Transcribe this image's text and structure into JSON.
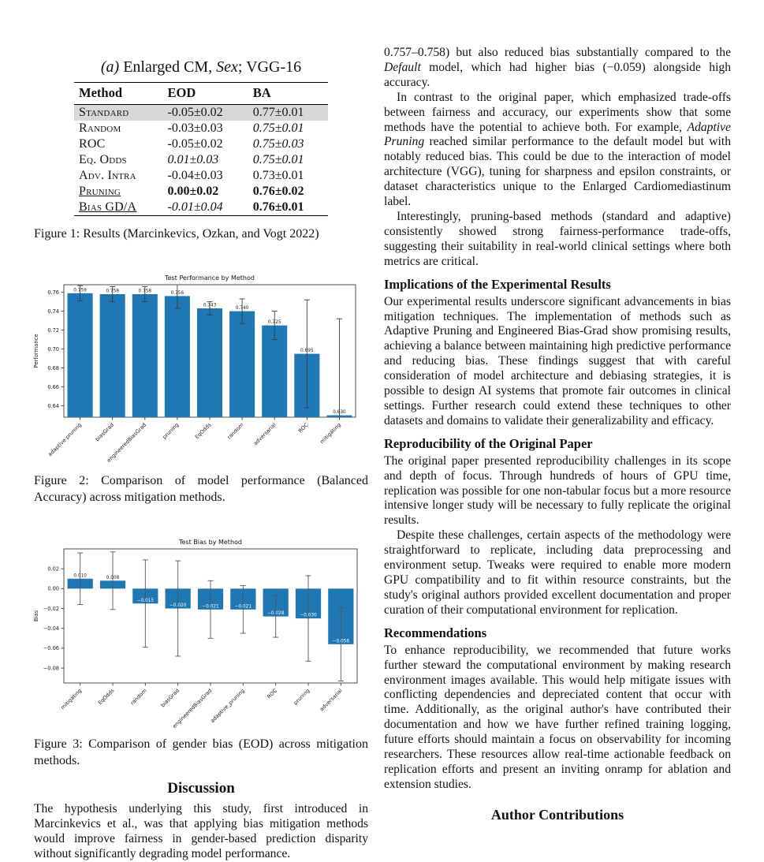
{
  "figure1": {
    "title": "*(a)* Enlarged CM, *Sex*; VGG-16",
    "caption": "Figure 1: Results (Marcinkevics, Ozkan, and Vogt 2022)",
    "table": {
      "headers": [
        "Method",
        "EOD",
        "BA"
      ],
      "rows": [
        {
          "method": "Standard",
          "eod": "-0.05±0.02",
          "ba": "0.77±0.01",
          "highlight": true,
          "eod_style": "normal",
          "ba_style": "normal",
          "method_underline": false
        },
        {
          "method": "Random",
          "eod": "-0.03±0.03",
          "ba": "0.75±0.01",
          "highlight": false,
          "eod_style": "normal",
          "ba_style": "italic",
          "method_underline": false
        },
        {
          "method": "ROC",
          "eod": "-0.05±0.02",
          "ba": "0.75±0.03",
          "highlight": false,
          "eod_style": "normal",
          "ba_style": "italic",
          "method_underline": false
        },
        {
          "method": "Eq. Odds",
          "eod": "0.01±0.03",
          "ba": "0.75±0.01",
          "highlight": false,
          "eod_style": "italic",
          "ba_style": "italic",
          "method_underline": false
        },
        {
          "method": "Adv. Intra",
          "eod": "-0.04±0.03",
          "ba": "0.73±0.01",
          "highlight": false,
          "eod_style": "normal",
          "ba_style": "normal",
          "method_underline": false
        },
        {
          "method": "Pruning",
          "eod": "0.00±0.02",
          "ba": "0.76±0.02",
          "highlight": false,
          "eod_style": "bold",
          "ba_style": "bold",
          "method_underline": true
        },
        {
          "method": "Bias GD/A",
          "eod": "-0.01±0.04",
          "ba": "0.76±0.01",
          "highlight": false,
          "eod_style": "italic",
          "ba_style": "bold",
          "method_underline": true
        }
      ]
    }
  },
  "figure2_caption": "Figure 2: Comparison of model performance (Balanced Accuracy) across mitigation methods.",
  "figure3_caption": "Figure 3: Comparison of gender bias (EOD) across mitigation methods.",
  "chart_data": [
    {
      "type": "bar",
      "title": "Test Performance by Method",
      "xlabel": "",
      "ylabel": "Performance",
      "categories": [
        "adaptive pruning",
        "biasGrad",
        "engineeredBiasGrad",
        "pruning",
        "EqOdds",
        "random",
        "adversarial",
        "ROC",
        "mitigating"
      ],
      "values": [
        0.759,
        0.758,
        0.758,
        0.756,
        0.743,
        0.74,
        0.725,
        0.695,
        0.63
      ],
      "errors": [
        0.008,
        0.008,
        0.008,
        0.013,
        0.007,
        0.013,
        0.015,
        0.057,
        0.102
      ],
      "ylim": [
        0.628,
        0.768
      ],
      "yticks": [
        0.64,
        0.66,
        0.68,
        0.7,
        0.72,
        0.74,
        0.76
      ],
      "baseline": "bottom",
      "grid": false,
      "legend": "none",
      "bar_color": "#1f77b4",
      "error_color": "#3b3b3b"
    },
    {
      "type": "bar",
      "title": "Test Bias by Method",
      "xlabel": "",
      "ylabel": "Bias",
      "categories": [
        "mitigating",
        "EqOdds",
        "random",
        "biasGrad",
        "engineeredBiasGrad",
        "adaptive_pruning",
        "ROC",
        "pruning",
        "adversarial"
      ],
      "values": [
        0.01,
        0.008,
        -0.015,
        -0.02,
        -0.021,
        -0.021,
        -0.028,
        -0.03,
        -0.056
      ],
      "errors": [
        0.026,
        0.029,
        0.044,
        0.048,
        0.029,
        0.024,
        0.021,
        0.043,
        0.037
      ],
      "ylim": [
        -0.095,
        0.04
      ],
      "yticks": [
        0.02,
        0.0,
        -0.02,
        -0.04,
        -0.06,
        -0.08
      ],
      "baseline": "zero",
      "grid": false,
      "legend": "none",
      "bar_color": "#1f77b4",
      "error_color": "#555555"
    }
  ],
  "discussion": {
    "heading": "Discussion",
    "text": "The hypothesis underlying this study, first introduced in Marcinkevics et al., was that applying bias mitigation methods would improve fairness in gender-based prediction disparity without significantly degrading model performance."
  },
  "right_column": {
    "blocks": [
      {
        "type": "p",
        "indent": false,
        "text": "0.757–0.758) but also reduced bias substantially compared to the *Default* model, which had higher bias (−0.059) alongside high accuracy."
      },
      {
        "type": "p",
        "indent": true,
        "text": "In contrast to the original paper, which emphasized trade-offs between fairness and accuracy, our experiments show that some methods have the potential to achieve both. For example, *Adaptive Pruning* reached similar performance to the default model but with notably reduced bias. This could be due to the interaction of model architecture (VGG), tuning for sharpness and epsilon constraints, or dataset characteristics unique to the Enlarged Cardiomediastinum label."
      },
      {
        "type": "p",
        "indent": true,
        "text": "Interestingly, pruning-based methods (standard and adaptive) consistently showed strong fairness-performance trade-offs, suggesting their suitability in real-world clinical settings where both metrics are critical."
      },
      {
        "type": "h",
        "text": "Implications of the Experimental Results"
      },
      {
        "type": "p",
        "indent": false,
        "text": "Our experimental results underscore significant advancements in bias mitigation techniques. The implementation of methods such as Adaptive Pruning and Engineered Bias-Grad show promising results, achieving a balance between maintaining high predictive performance and reducing bias. These findings suggest that with careful consideration of model architecture and debiasing strategies, it is possible to design AI systems that promote fair outcomes in clinical settings. Further research could extend these techniques to other datasets and domains to validate their generalizability and efficacy."
      },
      {
        "type": "h",
        "text": "Reproducibility of the Original Paper"
      },
      {
        "type": "p",
        "indent": false,
        "text": "The original paper presented reproducibility challenges in its scope and depth of focus. Through hundreds of hours of GPU time, replication was possible for one non-tabular focus but a more resource intensive longer study will be necessary to fully replicate the original results."
      },
      {
        "type": "p",
        "indent": true,
        "text": "Despite these challenges, certain aspects of the methodology were straightforward to replicate, including data preprocessing and environment setup. Tweaks were required to enable more modern GPU compatibility and to fit within resource constraints, but the study's original authors provided excellent documentation and proper curation of their computational environment for replication."
      },
      {
        "type": "h",
        "text": "Recommendations"
      },
      {
        "type": "p",
        "indent": false,
        "text": "To enhance reproducibility, we recommended that future works further steward the computational environment by making research environment images available. This would help mitigate issues with conflicting dependencies and depreciated content that occur with time. Additionally, as the original author's have contributed their documentation and how we have further refined training logging, future efforts should maintain a focus on observability for incoming researchers. These resources allow real-time actionable feedback on replication efforts and present an inviting onramp for ablation and extension studies."
      },
      {
        "type": "h-center",
        "text": "Author Contributions"
      }
    ]
  }
}
